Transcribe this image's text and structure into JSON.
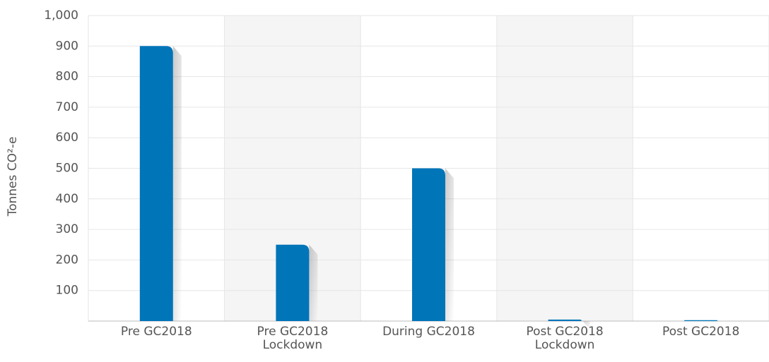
{
  "chart_data": {
    "type": "bar",
    "y_label": "Tonnes CO²-e",
    "categories": [
      "Pre GC2018",
      "Pre GC2018 Lockdown",
      "During GC2018",
      "Post GC2018 Lockdown",
      "Post GC2018"
    ],
    "values": [
      900,
      250,
      500,
      5,
      3
    ],
    "color": "#0075b8",
    "ylim": [
      0,
      1000
    ],
    "yticks": [
      100,
      200,
      300,
      400,
      500,
      600,
      700,
      800,
      900,
      {
        "value": 1000,
        "label": "1,000"
      }
    ],
    "grid": true
  }
}
